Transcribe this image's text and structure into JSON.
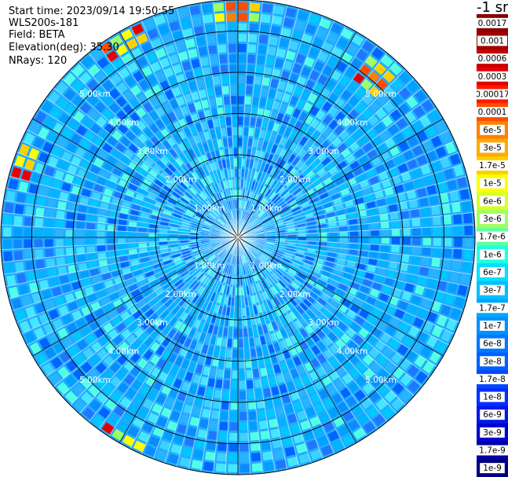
{
  "header": {
    "start_time": "Start time: 2023/09/14 19:50:55",
    "instrument": "WLS200s-181",
    "field": "Field: BETA",
    "elevation": "Elevation(deg): 35.30",
    "nrays": "NRays: 120"
  },
  "colorbar": {
    "unit": "-1 sr",
    "labels": [
      "0.0017",
      "0.001",
      "0.0006",
      "0.0003",
      "0.00017",
      "0.0001",
      "6e-5",
      "3e-5",
      "1.7e-5",
      "1e-5",
      "6e-6",
      "3e-6",
      "1.7e-6",
      "1e-6",
      "6e-7",
      "3e-7",
      "1.7e-7",
      "1e-7",
      "6e-8",
      "3e-8",
      "1.7e-8",
      "1e-8",
      "6e-9",
      "3e-9",
      "1.7e-9",
      "1e-9"
    ],
    "colors": [
      "#8b0000",
      "#a00000",
      "#c80000",
      "#e60000",
      "#ff1a00",
      "#ff4d00",
      "#ff8000",
      "#ffaa00",
      "#ffd000",
      "#ffff00",
      "#d8ff2a",
      "#a0ff60",
      "#60ffa0",
      "#20ffe0",
      "#00e0ff",
      "#00c0ff",
      "#00a8ff",
      "#0090ff",
      "#0078ff",
      "#0060ff",
      "#0048ff",
      "#0030ff",
      "#0018e8",
      "#0000d0",
      "#0000a8",
      "#000080"
    ]
  },
  "chart_data": {
    "type": "heatmap",
    "projection": "polar-ppi",
    "field": "BETA",
    "elevation_deg": 35.3,
    "n_rays": 120,
    "range_rings_km": [
      1.0,
      2.0,
      3.0,
      4.0,
      5.0
    ],
    "ring_labels": [
      "1.00km",
      "2.00km",
      "3.00km",
      "4.00km",
      "5.00km"
    ],
    "max_range_km": 5.75,
    "spokes_deg": [
      0,
      30,
      60,
      90,
      120,
      150,
      180,
      210,
      240,
      270,
      300,
      330
    ],
    "background_level": "3e-7 to 1e-7",
    "annotated_enhanced_regions": [
      {
        "azimuth_deg": 40,
        "range_km": [
          4.6,
          5.4
        ],
        "peak_value": "6e-5"
      },
      {
        "azimuth_deg": 0,
        "range_km": [
          5.2,
          5.6
        ],
        "peak_value": "1e-5"
      },
      {
        "azimuth_deg": 290,
        "range_km": [
          5.3,
          5.7
        ],
        "peak_value": "6e-5"
      },
      {
        "azimuth_deg": 330,
        "range_km": [
          5.3,
          5.6
        ],
        "peak_value": "1e-5"
      },
      {
        "azimuth_deg": 210,
        "range_km": [
          5.4,
          5.7
        ],
        "peak_value": "1e-5"
      }
    ]
  }
}
